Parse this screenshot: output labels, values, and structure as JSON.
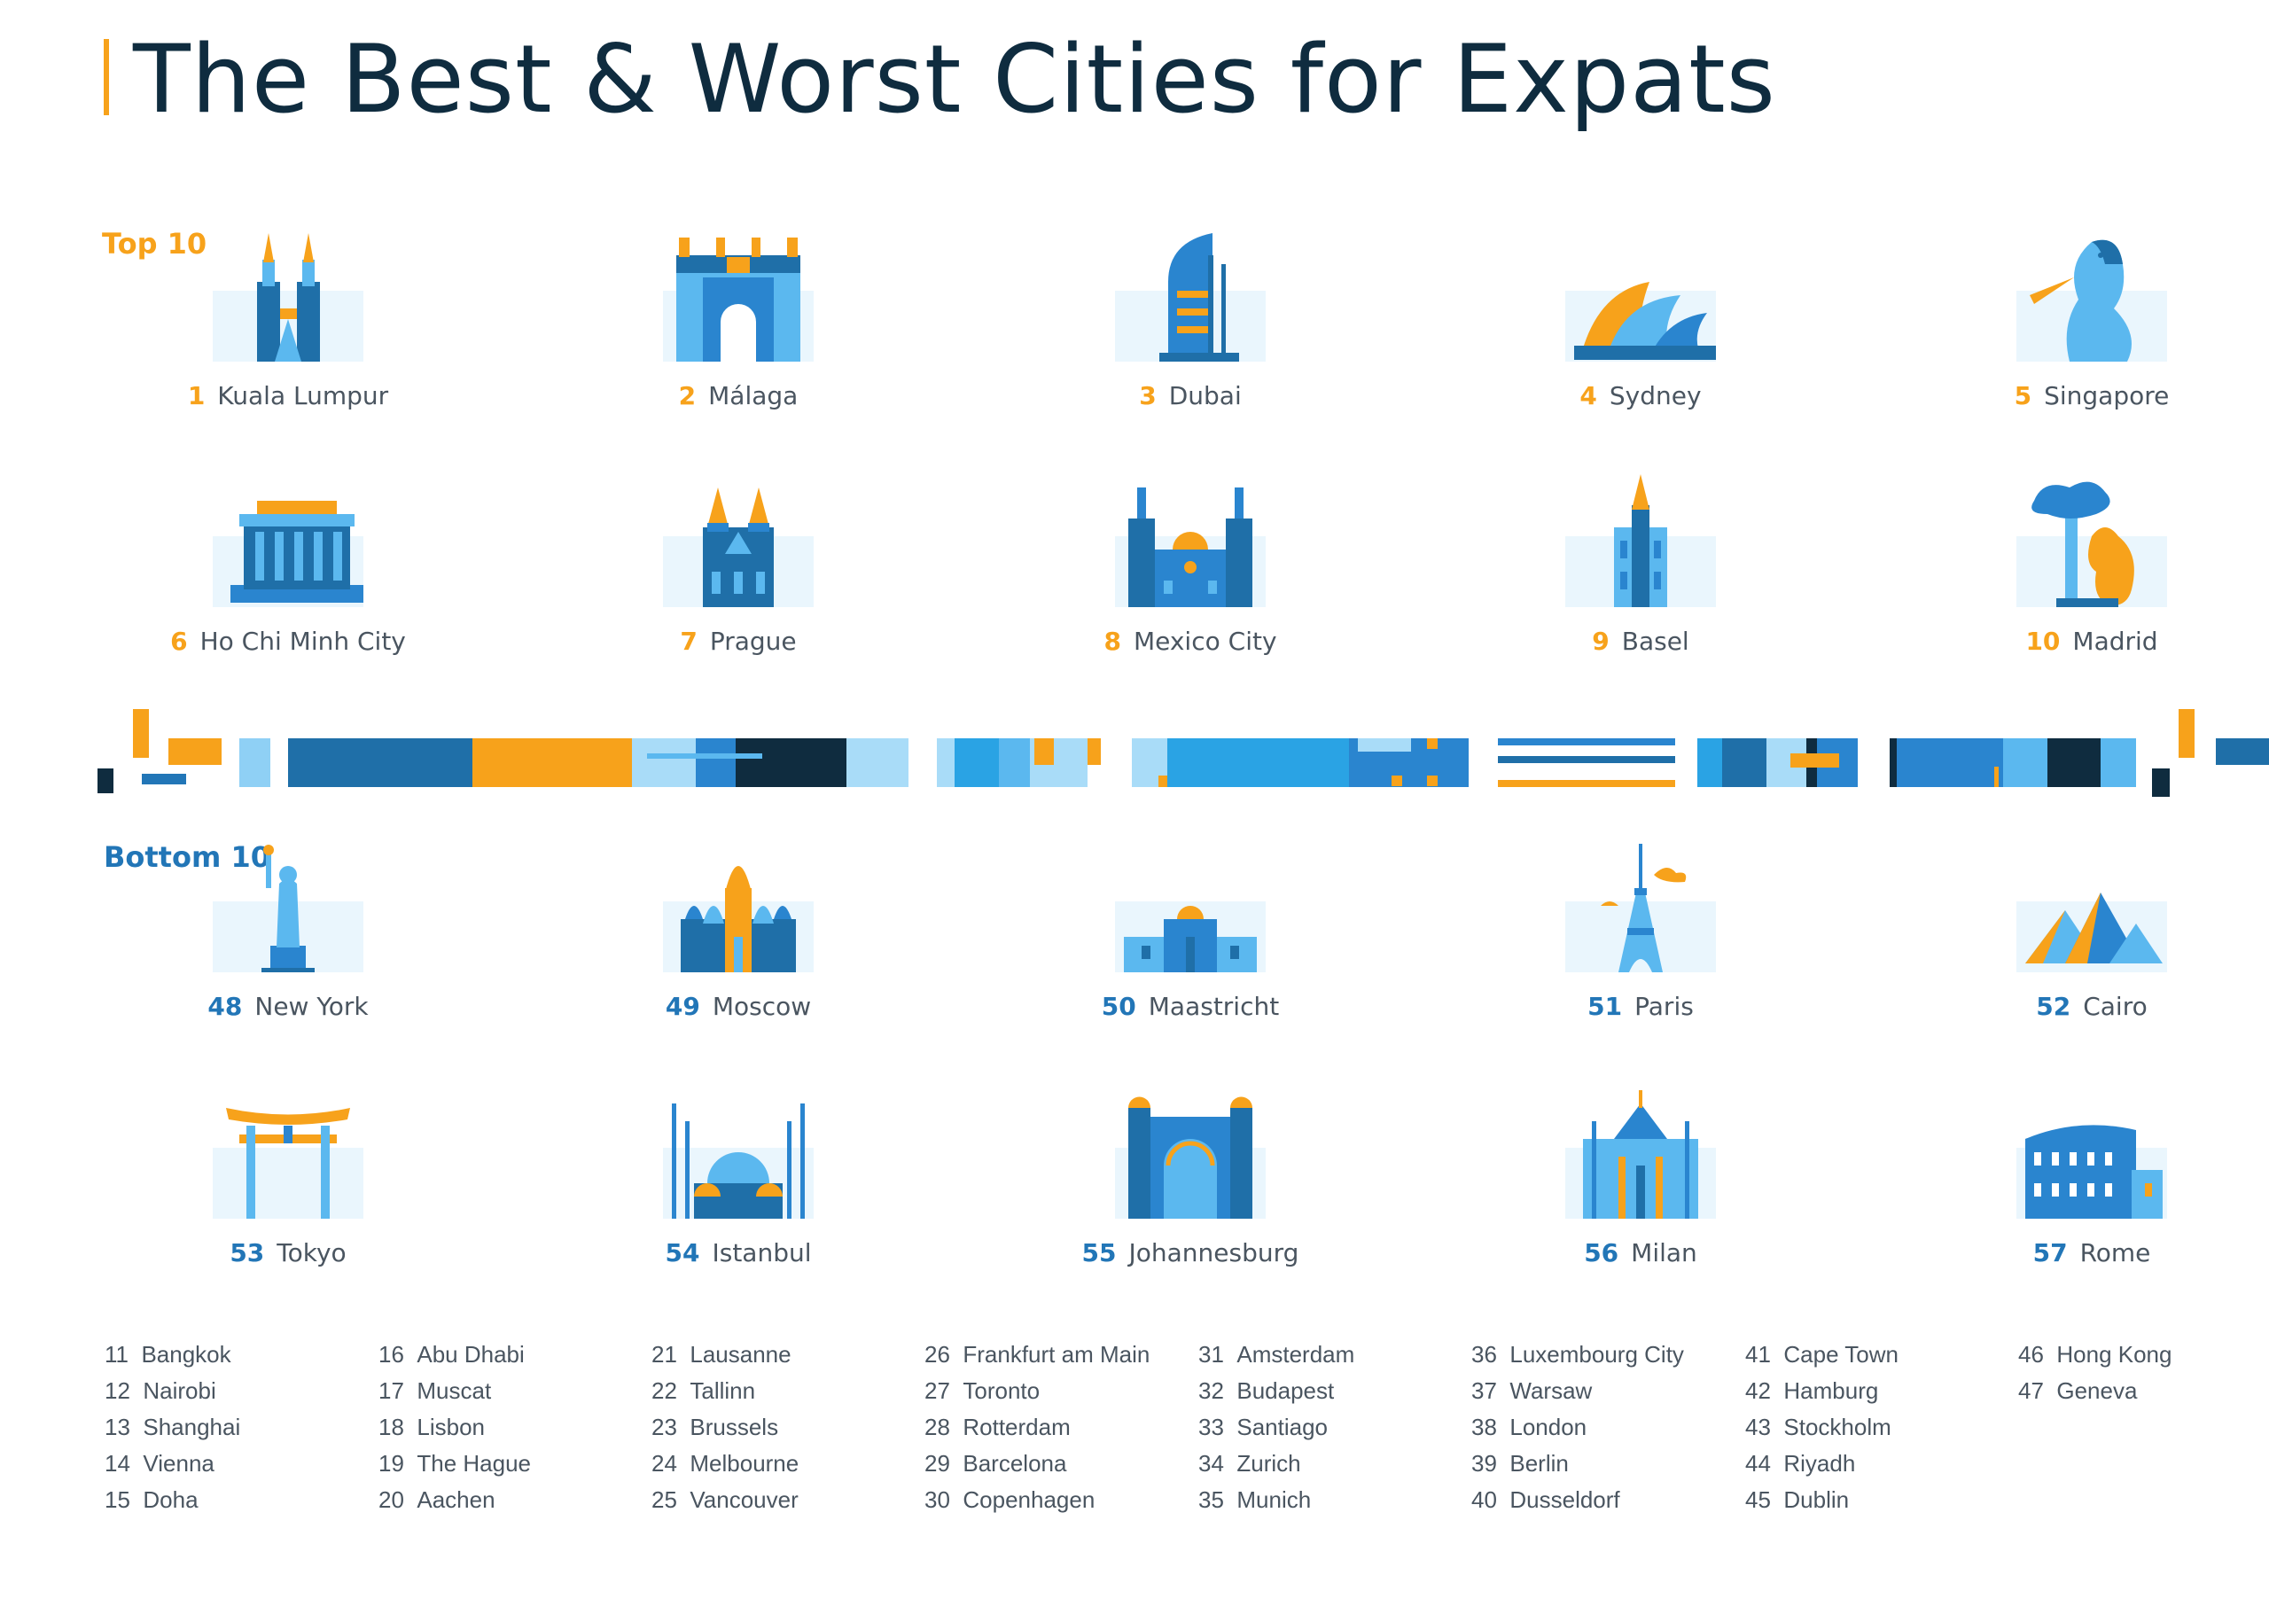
{
  "title": "The Best & Worst Cities for Expats",
  "sections": {
    "top": "Top 10",
    "bottom": "Bottom 10"
  },
  "colors": {
    "accent_orange": "#f7a21b",
    "navy": "#0f2c3f",
    "blue": "#2276b7",
    "light_blue": "#5bb8ef"
  },
  "top10": [
    {
      "rank": "1",
      "name": "Kuala Lumpur",
      "icon": "petronas-towers-icon"
    },
    {
      "rank": "2",
      "name": "Málaga",
      "icon": "malaga-castle-icon"
    },
    {
      "rank": "3",
      "name": "Dubai",
      "icon": "burj-al-arab-icon"
    },
    {
      "rank": "4",
      "name": "Sydney",
      "icon": "opera-house-icon"
    },
    {
      "rank": "5",
      "name": "Singapore",
      "icon": "merlion-icon"
    },
    {
      "rank": "6",
      "name": "Ho Chi Minh City",
      "icon": "mausoleum-icon"
    },
    {
      "rank": "7",
      "name": "Prague",
      "icon": "tyn-church-icon"
    },
    {
      "rank": "8",
      "name": "Mexico City",
      "icon": "cathedral-icon"
    },
    {
      "rank": "9",
      "name": "Basel",
      "icon": "basel-minster-icon"
    },
    {
      "rank": "10",
      "name": "Madrid",
      "icon": "bear-and-tree-icon"
    }
  ],
  "bottom10": [
    {
      "rank": "48",
      "name": "New York",
      "icon": "statue-of-liberty-icon"
    },
    {
      "rank": "49",
      "name": "Moscow",
      "icon": "st-basils-cathedral-icon"
    },
    {
      "rank": "50",
      "name": "Maastricht",
      "icon": "city-hall-icon"
    },
    {
      "rank": "51",
      "name": "Paris",
      "icon": "eiffel-tower-icon"
    },
    {
      "rank": "52",
      "name": "Cairo",
      "icon": "pyramids-icon"
    },
    {
      "rank": "53",
      "name": "Tokyo",
      "icon": "torii-gate-icon"
    },
    {
      "rank": "54",
      "name": "Istanbul",
      "icon": "blue-mosque-icon"
    },
    {
      "rank": "55",
      "name": "Johannesburg",
      "icon": "johannesburg-building-icon"
    },
    {
      "rank": "56",
      "name": "Milan",
      "icon": "milan-cathedral-icon"
    },
    {
      "rank": "57",
      "name": "Rome",
      "icon": "colosseum-icon"
    }
  ],
  "list_columns": [
    [
      {
        "rank": "11",
        "name": "Bangkok"
      },
      {
        "rank": "12",
        "name": "Nairobi"
      },
      {
        "rank": "13",
        "name": "Shanghai"
      },
      {
        "rank": "14",
        "name": "Vienna"
      },
      {
        "rank": "15",
        "name": "Doha"
      }
    ],
    [
      {
        "rank": "16",
        "name": "Abu Dhabi"
      },
      {
        "rank": "17",
        "name": "Muscat"
      },
      {
        "rank": "18",
        "name": "Lisbon"
      },
      {
        "rank": "19",
        "name": "The Hague"
      },
      {
        "rank": "20",
        "name": "Aachen"
      }
    ],
    [
      {
        "rank": "21",
        "name": "Lausanne"
      },
      {
        "rank": "22",
        "name": "Tallinn"
      },
      {
        "rank": "23",
        "name": "Brussels"
      },
      {
        "rank": "24",
        "name": "Melbourne"
      },
      {
        "rank": "25",
        "name": "Vancouver"
      }
    ],
    [
      {
        "rank": "26",
        "name": "Frankfurt am Main"
      },
      {
        "rank": "27",
        "name": "Toronto"
      },
      {
        "rank": "28",
        "name": "Rotterdam"
      },
      {
        "rank": "29",
        "name": "Barcelona"
      },
      {
        "rank": "30",
        "name": "Copenhagen"
      }
    ],
    [
      {
        "rank": "31",
        "name": "Amsterdam"
      },
      {
        "rank": "32",
        "name": "Budapest"
      },
      {
        "rank": "33",
        "name": "Santiago"
      },
      {
        "rank": "34",
        "name": "Zurich"
      },
      {
        "rank": "35",
        "name": "Munich"
      }
    ],
    [
      {
        "rank": "36",
        "name": "Luxembourg City"
      },
      {
        "rank": "37",
        "name": "Warsaw"
      },
      {
        "rank": "38",
        "name": "London"
      },
      {
        "rank": "39",
        "name": "Berlin"
      },
      {
        "rank": "40",
        "name": "Dusseldorf"
      }
    ],
    [
      {
        "rank": "41",
        "name": "Cape Town"
      },
      {
        "rank": "42",
        "name": "Hamburg"
      },
      {
        "rank": "43",
        "name": "Stockholm"
      },
      {
        "rank": "44",
        "name": "Riyadh"
      },
      {
        "rank": "45",
        "name": "Dublin"
      }
    ],
    [
      {
        "rank": "46",
        "name": "Hong Kong"
      },
      {
        "rank": "47",
        "name": "Geneva"
      }
    ]
  ]
}
